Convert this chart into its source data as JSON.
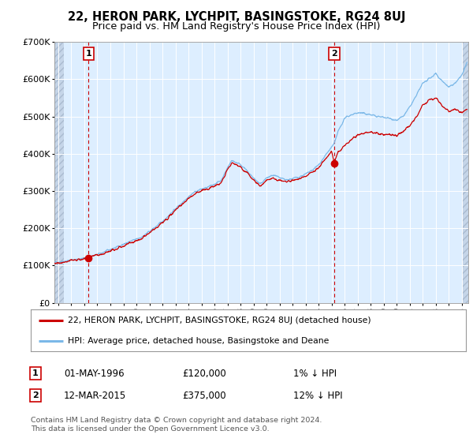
{
  "title": "22, HERON PARK, LYCHPIT, BASINGSTOKE, RG24 8UJ",
  "subtitle": "Price paid vs. HM Land Registry's House Price Index (HPI)",
  "sale1_date": "01-MAY-1996",
  "sale1_price": 120000,
  "sale1_label": "1% ↓ HPI",
  "sale1_year": 1996.33,
  "sale2_date": "12-MAR-2015",
  "sale2_price": 375000,
  "sale2_label": "12% ↓ HPI",
  "sale2_year": 2015.2,
  "hpi_color": "#7bb8e8",
  "price_color": "#cc0000",
  "dot_color": "#cc0000",
  "bg_color": "#ddeeff",
  "legend_label1": "22, HERON PARK, LYCHPIT, BASINGSTOKE, RG24 8UJ (detached house)",
  "legend_label2": "HPI: Average price, detached house, Basingstoke and Deane",
  "footer1": "Contains HM Land Registry data © Crown copyright and database right 2024.",
  "footer2": "This data is licensed under the Open Government Licence v3.0.",
  "ylim": [
    0,
    700000
  ],
  "xmin": 1993.7,
  "xmax": 2025.5,
  "hpi_anchors": [
    [
      1993.7,
      108000
    ],
    [
      1994.5,
      112000
    ],
    [
      1996.33,
      121200
    ],
    [
      1997.5,
      136000
    ],
    [
      1999.0,
      157000
    ],
    [
      2000.5,
      178000
    ],
    [
      2002.0,
      218000
    ],
    [
      2003.0,
      252000
    ],
    [
      2004.0,
      285000
    ],
    [
      2004.5,
      298000
    ],
    [
      2005.0,
      305000
    ],
    [
      2005.5,
      310000
    ],
    [
      2006.5,
      328000
    ],
    [
      2007.3,
      382000
    ],
    [
      2008.0,
      372000
    ],
    [
      2008.8,
      342000
    ],
    [
      2009.5,
      318000
    ],
    [
      2010.0,
      335000
    ],
    [
      2010.5,
      342000
    ],
    [
      2011.0,
      335000
    ],
    [
      2011.5,
      330000
    ],
    [
      2012.0,
      333000
    ],
    [
      2012.5,
      338000
    ],
    [
      2013.0,
      345000
    ],
    [
      2013.5,
      355000
    ],
    [
      2014.0,
      370000
    ],
    [
      2015.0,
      418000
    ],
    [
      2015.2,
      426000
    ],
    [
      2015.5,
      460000
    ],
    [
      2016.0,
      495000
    ],
    [
      2016.5,
      505000
    ],
    [
      2017.0,
      510000
    ],
    [
      2017.5,
      508000
    ],
    [
      2018.0,
      505000
    ],
    [
      2018.5,
      500000
    ],
    [
      2019.0,
      498000
    ],
    [
      2019.5,
      495000
    ],
    [
      2020.0,
      490000
    ],
    [
      2020.5,
      500000
    ],
    [
      2021.0,
      525000
    ],
    [
      2021.5,
      555000
    ],
    [
      2022.0,
      590000
    ],
    [
      2022.5,
      600000
    ],
    [
      2023.0,
      615000
    ],
    [
      2023.5,
      595000
    ],
    [
      2024.0,
      580000
    ],
    [
      2024.5,
      590000
    ],
    [
      2025.0,
      610000
    ],
    [
      2025.4,
      645000
    ]
  ],
  "price_anchors": [
    [
      1993.7,
      106000
    ],
    [
      1994.5,
      110000
    ],
    [
      1996.33,
      120000
    ],
    [
      1997.5,
      133000
    ],
    [
      1999.0,
      153000
    ],
    [
      2000.5,
      174000
    ],
    [
      2002.0,
      214000
    ],
    [
      2003.0,
      248000
    ],
    [
      2004.0,
      280000
    ],
    [
      2004.5,
      293000
    ],
    [
      2005.0,
      300000
    ],
    [
      2005.5,
      305000
    ],
    [
      2006.5,
      322000
    ],
    [
      2007.3,
      376000
    ],
    [
      2008.0,
      365000
    ],
    [
      2008.8,
      336000
    ],
    [
      2009.5,
      312000
    ],
    [
      2010.0,
      330000
    ],
    [
      2010.5,
      336000
    ],
    [
      2011.0,
      328000
    ],
    [
      2011.5,
      324000
    ],
    [
      2012.0,
      328000
    ],
    [
      2012.5,
      333000
    ],
    [
      2013.0,
      340000
    ],
    [
      2013.5,
      350000
    ],
    [
      2014.0,
      362000
    ],
    [
      2015.0,
      405000
    ],
    [
      2015.2,
      375000
    ],
    [
      2015.5,
      405000
    ],
    [
      2016.0,
      420000
    ],
    [
      2016.5,
      438000
    ],
    [
      2017.0,
      450000
    ],
    [
      2017.5,
      455000
    ],
    [
      2018.0,
      460000
    ],
    [
      2018.5,
      455000
    ],
    [
      2019.0,
      452000
    ],
    [
      2019.5,
      450000
    ],
    [
      2020.0,
      448000
    ],
    [
      2020.5,
      460000
    ],
    [
      2021.0,
      475000
    ],
    [
      2021.5,
      500000
    ],
    [
      2022.0,
      530000
    ],
    [
      2022.5,
      545000
    ],
    [
      2023.0,
      550000
    ],
    [
      2023.5,
      530000
    ],
    [
      2024.0,
      515000
    ],
    [
      2024.5,
      520000
    ],
    [
      2025.0,
      510000
    ],
    [
      2025.4,
      520000
    ]
  ]
}
